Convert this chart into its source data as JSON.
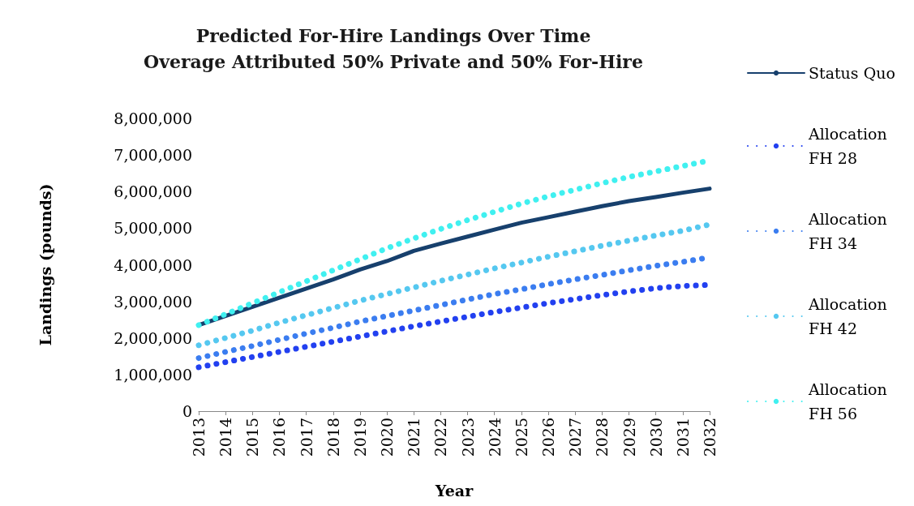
{
  "chart_data": {
    "type": "line",
    "title": "Predicted For-Hire Landings Over Time",
    "subtitle": "Overage Attributed 50% Private and 50% For-Hire",
    "xlabel": "Year",
    "ylabel": "Landings (pounds)",
    "categories": [
      "2013",
      "2014",
      "2015",
      "2016",
      "2017",
      "2018",
      "2019",
      "2020",
      "2021",
      "2022",
      "2023",
      "2024",
      "2025",
      "2026",
      "2027",
      "2028",
      "2029",
      "2030",
      "2031",
      "2032"
    ],
    "series": [
      {
        "name": "Status Quo",
        "color": "#17406d",
        "line_style": "solid",
        "values": [
          2350000,
          2600000,
          2850000,
          3100000,
          3350000,
          3600000,
          3870000,
          4100000,
          4380000,
          4580000,
          4770000,
          4960000,
          5150000,
          5300000,
          5450000,
          5600000,
          5740000,
          5850000,
          5970000,
          6080000
        ]
      },
      {
        "name": "Allocation FH 28",
        "color": "#2240f0",
        "line_style": "dotted",
        "values": [
          1200000,
          1340000,
          1480000,
          1620000,
          1760000,
          1900000,
          2040000,
          2180000,
          2320000,
          2450000,
          2580000,
          2710000,
          2830000,
          2950000,
          3060000,
          3170000,
          3270000,
          3360000,
          3420000,
          3450000
        ]
      },
      {
        "name": "Allocation FH 34",
        "color": "#3b7df0",
        "line_style": "dotted",
        "values": [
          1450000,
          1620000,
          1780000,
          1950000,
          2120000,
          2280000,
          2450000,
          2600000,
          2750000,
          2900000,
          3050000,
          3200000,
          3330000,
          3470000,
          3600000,
          3720000,
          3850000,
          3970000,
          4080000,
          4200000
        ]
      },
      {
        "name": "Allocation FH 42",
        "color": "#55c8f0",
        "line_style": "dotted",
        "values": [
          1800000,
          2000000,
          2200000,
          2420000,
          2620000,
          2820000,
          3020000,
          3200000,
          3380000,
          3560000,
          3730000,
          3900000,
          4060000,
          4220000,
          4370000,
          4520000,
          4660000,
          4800000,
          4930000,
          5100000
        ]
      },
      {
        "name": "Allocation FH 56",
        "color": "#40f0f0",
        "line_style": "dotted",
        "values": [
          2350000,
          2650000,
          2950000,
          3250000,
          3550000,
          3850000,
          4150000,
          4450000,
          4720000,
          4980000,
          5220000,
          5450000,
          5670000,
          5870000,
          6050000,
          6230000,
          6400000,
          6550000,
          6700000,
          6850000
        ]
      }
    ],
    "ylim": [
      0,
      8000000
    ],
    "yticks": [
      0,
      {
        "value": 1000000,
        "label": "1,000,000"
      },
      {
        "value": 2000000,
        "label": "2,000,000"
      },
      {
        "value": 3000000,
        "label": "3,000,000"
      },
      {
        "value": 4000000,
        "label": "4,000,000"
      },
      {
        "value": 5000000,
        "label": "5,000,000"
      },
      {
        "value": 6000000,
        "label": "6,000,000"
      },
      {
        "value": 7000000,
        "label": "7,000,000"
      },
      {
        "value": 8000000,
        "label": "8,000,000"
      }
    ],
    "grid": false,
    "legend": "right",
    "marker": "none"
  }
}
